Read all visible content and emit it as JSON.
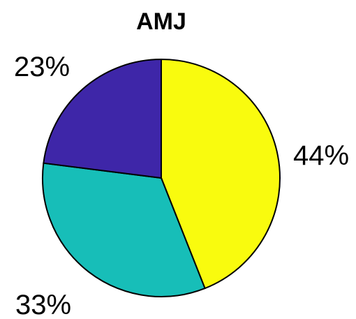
{
  "chart_data": {
    "type": "pie",
    "title": "AMJ",
    "slices": [
      {
        "value": 44,
        "label": "44%",
        "color": "#F9FB0E"
      },
      {
        "value": 33,
        "label": "33%",
        "color": "#17BEB8"
      },
      {
        "value": 23,
        "label": "23%",
        "color": "#3E26A8"
      }
    ],
    "start_angle_deg": 0,
    "direction": "clockwise",
    "legend": "none"
  }
}
